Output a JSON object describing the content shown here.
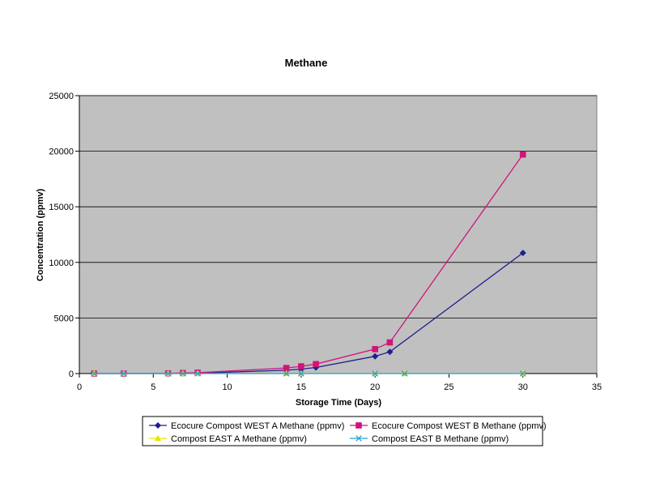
{
  "chart_data": {
    "type": "line",
    "title": "Methane",
    "xlabel": "Storage Time (Days)",
    "ylabel": "Concentration (ppmv)",
    "xlim": [
      0,
      35
    ],
    "ylim": [
      0,
      25000
    ],
    "xticks": [
      0,
      5,
      10,
      15,
      20,
      25,
      30,
      35
    ],
    "yticks": [
      0,
      5000,
      10000,
      15000,
      20000,
      25000
    ],
    "grid": "horizontal",
    "legend_position": "bottom",
    "plot_background": "#c0c0c0",
    "series": [
      {
        "name": "Ecocure Compost WEST A Methane (ppmv)",
        "color": "#1f1f8f",
        "marker": "diamond",
        "x": [
          1,
          3,
          6,
          7,
          8,
          14,
          15,
          16,
          20,
          21,
          30
        ],
        "y": [
          0,
          0,
          0,
          20,
          40,
          300,
          400,
          550,
          1550,
          1950,
          10850
        ]
      },
      {
        "name": "Ecocure Compost WEST B Methane (ppmv)",
        "color": "#d0157a",
        "marker": "square",
        "x": [
          1,
          3,
          6,
          7,
          8,
          14,
          15,
          16,
          20,
          21,
          30
        ],
        "y": [
          0,
          0,
          20,
          50,
          80,
          500,
          650,
          850,
          2200,
          2800,
          19700
        ]
      },
      {
        "name": "Compost EAST A Methane (ppmv)",
        "color": "#e6e600",
        "marker": "triangle",
        "x": [
          1,
          3,
          6,
          7,
          8,
          14,
          15,
          20,
          22,
          30
        ],
        "y": [
          0,
          0,
          0,
          0,
          0,
          0,
          0,
          0,
          0,
          0
        ]
      },
      {
        "name": "Compost EAST B Methane (ppmv)",
        "color": "#2a9fd6",
        "marker": "x",
        "x": [
          1,
          3,
          6,
          7,
          8,
          14,
          15,
          20,
          22,
          30
        ],
        "y": [
          0,
          0,
          0,
          0,
          0,
          0,
          0,
          0,
          0,
          0
        ]
      }
    ]
  }
}
